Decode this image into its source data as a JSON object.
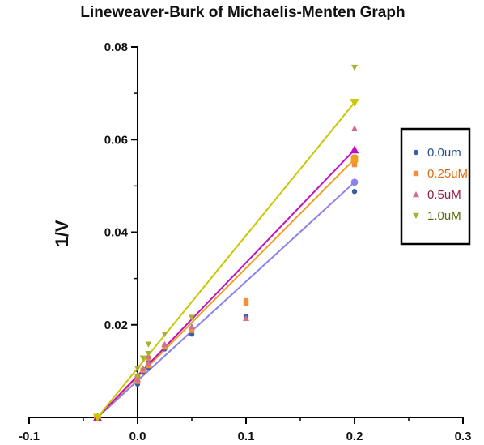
{
  "chart_data": {
    "type": "scatter",
    "title": "Lineweaver-Burk of Michaelis-Menten Graph",
    "xlabel": "",
    "ylabel": "1/V",
    "xlim": [
      -0.1,
      0.3
    ],
    "ylim": [
      0,
      0.08
    ],
    "x_ticks": [
      -0.1,
      0.0,
      0.1,
      0.2,
      0.3
    ],
    "x_tick_labels": [
      "-0.1",
      "0.0",
      "0.1",
      "0.2",
      "0.3"
    ],
    "y_ticks": [
      0.02,
      0.04,
      0.06,
      0.08
    ],
    "y_tick_labels": [
      "0.02",
      "0.04",
      "0.06",
      "0.08"
    ],
    "legend_position": "right",
    "series": [
      {
        "name": "0.0um",
        "marker": "circle",
        "color": "#3a5f9e",
        "line_color": "#8a82e8",
        "points": [
          [
            0.0,
            0.0072
          ],
          [
            0.0,
            0.0082
          ],
          [
            0.005,
            0.0098
          ],
          [
            0.01,
            0.0108
          ],
          [
            0.01,
            0.0124
          ],
          [
            0.025,
            0.0148
          ],
          [
            0.05,
            0.018
          ],
          [
            0.1,
            0.0218
          ],
          [
            0.2,
            0.0508
          ],
          [
            0.2,
            0.0488
          ]
        ],
        "fit": {
          "x": [
            -0.037,
            0.2
          ],
          "y": [
            0.0,
            0.0508
          ]
        }
      },
      {
        "name": "0.25uM",
        "marker": "square",
        "color": "#f0903c",
        "line_color": "#f0a020",
        "points": [
          [
            0.0,
            0.0078
          ],
          [
            0.0,
            0.0088
          ],
          [
            0.005,
            0.0102
          ],
          [
            0.01,
            0.0112
          ],
          [
            0.01,
            0.0128
          ],
          [
            0.025,
            0.0152
          ],
          [
            0.05,
            0.0188
          ],
          [
            0.1,
            0.0252
          ],
          [
            0.1,
            0.0246
          ],
          [
            0.2,
            0.0546
          ],
          [
            0.2,
            0.0562
          ]
        ],
        "fit": {
          "x": [
            -0.037,
            0.2
          ],
          "y": [
            0.0,
            0.0558
          ]
        }
      },
      {
        "name": "0.5uM",
        "marker": "triangle-up",
        "color": "#d07090",
        "line_color": "#c010c0",
        "points": [
          [
            0.0,
            0.0082
          ],
          [
            0.0,
            0.0092
          ],
          [
            0.005,
            0.0106
          ],
          [
            0.01,
            0.0118
          ],
          [
            0.01,
            0.0132
          ],
          [
            0.025,
            0.0158
          ],
          [
            0.05,
            0.0196
          ],
          [
            0.1,
            0.0214
          ],
          [
            0.2,
            0.0624
          ],
          [
            0.2,
            0.058
          ]
        ],
        "fit": {
          "x": [
            -0.037,
            0.2
          ],
          "y": [
            0.0,
            0.0578
          ]
        }
      },
      {
        "name": "1.0uM",
        "marker": "triangle-down",
        "color": "#a8b030",
        "line_color": "#c8c800",
        "points": [
          [
            0.0,
            0.0088
          ],
          [
            0.0,
            0.0106
          ],
          [
            0.005,
            0.0128
          ],
          [
            0.01,
            0.0138
          ],
          [
            0.01,
            0.0158
          ],
          [
            0.025,
            0.018
          ],
          [
            0.05,
            0.0216
          ],
          [
            0.2,
            0.0756
          ],
          [
            0.2,
            0.0682
          ]
        ],
        "fit": {
          "x": [
            -0.037,
            0.2
          ],
          "y": [
            0.0,
            0.068
          ]
        }
      }
    ]
  }
}
